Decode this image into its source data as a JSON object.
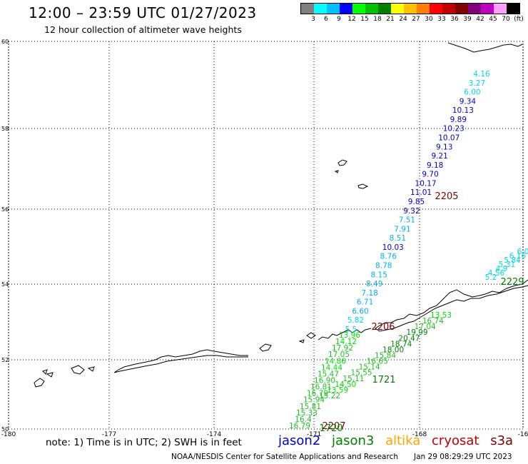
{
  "header": {
    "title": "12:00 – 23:59 UTC 01/27/2023",
    "subtitle": "12 hour collection of altimeter wave heights"
  },
  "legend": {
    "labels": [
      "3",
      "6",
      "9",
      "12",
      "15",
      "18",
      "21",
      "24",
      "27",
      "30",
      "33",
      "36",
      "39",
      "42",
      "45",
      "70",
      "(ft)"
    ],
    "colors": [
      "#808080",
      "#00ffff",
      "#00c0ff",
      "#0000ff",
      "#00ff00",
      "#00c000",
      "#008000",
      "#ffff00",
      "#ffc000",
      "#ff8000",
      "#ff0000",
      "#c00000",
      "#800000",
      "#800080",
      "#c000c0",
      "#ffa0ff",
      "#000000"
    ]
  },
  "axes": {
    "lat_labels": [
      "60",
      "58",
      "56",
      "54",
      "52",
      "50"
    ],
    "lon_labels": [
      "-180",
      "-177",
      "-174",
      "-171",
      "-168",
      "-16"
    ]
  },
  "tracks": {
    "jason2_color": "#0000cd",
    "light_color": "#00d8e8",
    "mid_color": "#00b0f0",
    "jason3_light": "#00e000",
    "jason3_mid": "#20c020",
    "jason3_dark": "#008000",
    "s3a_color": "#800000",
    "track_a": [
      "4.16",
      "3.27",
      "6.00",
      "9.34",
      "10.13",
      "9.89",
      "10.23",
      "10.07",
      "9.13",
      "9.21",
      "9.18",
      "9.70",
      "10.17",
      "11.01",
      "9.85",
      "9.32",
      "7.51",
      "7.91",
      "8.51",
      "10.03",
      "8.76",
      "8.78",
      "8.15",
      "8.49",
      "7.18",
      "6.71",
      "6.60",
      "5.82",
      "5.5"
    ],
    "track_b": [
      "13.53",
      "16.74",
      "17.04",
      "19.99",
      "20.47",
      "18.74",
      "18.00",
      "15.84",
      "16.65",
      "15.14",
      "15.55",
      "15.11",
      "14.50",
      "13.59",
      "15.22"
    ],
    "track_c": [
      "13.96",
      "14.12",
      "17.92",
      "17.05",
      "14.86",
      "14.44",
      "15.47",
      "16.90",
      "16.81",
      "16.79",
      "15.94",
      "15.81",
      "15.33",
      "16.4",
      "16.79"
    ],
    "track_d": [
      "6.0",
      "6.16",
      "5.84",
      "5.31",
      "4.9",
      "4.56",
      "5.2"
    ],
    "time_labels": [
      {
        "text": "2205",
        "color": "#800000"
      },
      {
        "text": "2206",
        "color": "#800000"
      },
      {
        "text": "1721",
        "color": "#008000"
      },
      {
        "text": "2207",
        "color": "#800000"
      },
      {
        "text": "1720",
        "color": "#008000"
      },
      {
        "text": "2229",
        "color": "#008000"
      }
    ]
  },
  "footer": {
    "note": "note: 1) Time is in UTC; 2) SWH is in feet",
    "missions": [
      {
        "name": "jason2",
        "color": "#0000cd"
      },
      {
        "name": "jason3",
        "color": "#008000"
      },
      {
        "name": "altika",
        "color": "#ffa500"
      },
      {
        "name": "cryosat",
        "color": "#c00000"
      },
      {
        "name": "s3a",
        "color": "#800000"
      }
    ],
    "credit": "NOAA/NESDIS Center for Satellite Applications and Research",
    "date": "Jan 29 08:29:29 UTC 2023"
  }
}
